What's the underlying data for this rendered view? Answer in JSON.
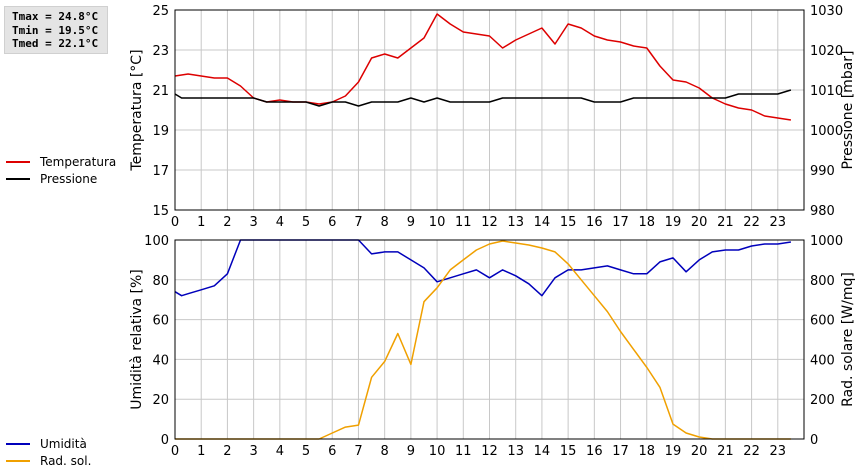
{
  "stats": {
    "tmax": "Tmax = 24.8°C",
    "tmin": "Tmin = 19.5°C",
    "tmed": "Tmed = 22.1°C"
  },
  "colors": {
    "temperature": "#dd0000",
    "pressure": "#000000",
    "humidity": "#0000bb",
    "radiation": "#f0a000",
    "grid": "#c8c8c8"
  },
  "legend_top": [
    {
      "label": "Temperatura",
      "color": "#dd0000"
    },
    {
      "label": "Pressione",
      "color": "#000000"
    }
  ],
  "legend_bottom": [
    {
      "label": "Umidità",
      "color": "#0000bb"
    },
    {
      "label": "Rad. sol.",
      "color": "#f0a000"
    }
  ],
  "chart_data": [
    {
      "type": "line",
      "grid": true,
      "legend_position": "left",
      "xlabel": "",
      "ylabel_left": "Temperatura [°C]",
      "ylabel_right": "Pressione [mbar]",
      "xlim": [
        0,
        24
      ],
      "ylim_left": [
        15,
        25
      ],
      "ylim_right": [
        980,
        1030
      ],
      "x_ticks": [
        "0",
        "1",
        "2",
        "3",
        "4",
        "5",
        "6",
        "7",
        "8",
        "9",
        "10",
        "11",
        "12",
        "13",
        "14",
        "15",
        "16",
        "17",
        "18",
        "19",
        "20",
        "21",
        "22",
        "23"
      ],
      "y_ticks_left": [
        "15",
        "17",
        "19",
        "21",
        "23",
        "25"
      ],
      "y_ticks_right": [
        "980",
        "990",
        "1000",
        "1010",
        "1020",
        "1030"
      ],
      "series": [
        {
          "name": "Temperatura",
          "axis": "left",
          "color": "#dd0000",
          "x": [
            0,
            0.5,
            1,
            1.5,
            2,
            2.5,
            3,
            3.5,
            4,
            4.5,
            5,
            5.5,
            6,
            6.5,
            7,
            7.5,
            8,
            8.5,
            9,
            9.5,
            10,
            10.5,
            11,
            11.5,
            12,
            12.5,
            13,
            13.5,
            14,
            14.5,
            15,
            15.5,
            16,
            16.5,
            17,
            17.5,
            18,
            18.5,
            19,
            19.5,
            20,
            20.5,
            21,
            21.5,
            22,
            22.5,
            23,
            23.5
          ],
          "values": [
            21.7,
            21.8,
            21.7,
            21.6,
            21.6,
            21.2,
            20.6,
            20.4,
            20.5,
            20.4,
            20.4,
            20.3,
            20.4,
            20.7,
            21.4,
            22.6,
            22.8,
            22.6,
            23.1,
            23.6,
            24.8,
            24.3,
            23.9,
            23.8,
            23.7,
            23.1,
            23.5,
            23.8,
            24.1,
            23.3,
            24.3,
            24.1,
            23.7,
            23.5,
            23.4,
            23.2,
            23.1,
            22.2,
            21.5,
            21.4,
            21.1,
            20.6,
            20.3,
            20.1,
            20.0,
            19.7,
            19.6,
            19.5
          ]
        },
        {
          "name": "Pressione",
          "axis": "right",
          "color": "#000000",
          "x": [
            0,
            0.25,
            0.5,
            1,
            1.5,
            2,
            2.5,
            3,
            3.5,
            4,
            4.5,
            5,
            5.5,
            6,
            6.5,
            7,
            7.5,
            8,
            8.5,
            9,
            9.5,
            10,
            10.5,
            11,
            11.5,
            12,
            12.5,
            13,
            13.5,
            14,
            14.5,
            15,
            15.5,
            16,
            16.5,
            17,
            17.5,
            18,
            18.5,
            19,
            19.5,
            20,
            20.5,
            21,
            21.5,
            22,
            22.5,
            23,
            23.5
          ],
          "values": [
            1009,
            1008,
            1008,
            1008,
            1008,
            1008,
            1008,
            1008,
            1007,
            1007,
            1007,
            1007,
            1006,
            1007,
            1007,
            1006,
            1007,
            1007,
            1007,
            1008,
            1007,
            1008,
            1007,
            1007,
            1007,
            1007,
            1008,
            1008,
            1008,
            1008,
            1008,
            1008,
            1008,
            1007,
            1007,
            1007,
            1008,
            1008,
            1008,
            1008,
            1008,
            1008,
            1008,
            1008,
            1009,
            1009,
            1009,
            1009,
            1010
          ]
        }
      ]
    },
    {
      "type": "line",
      "grid": true,
      "legend_position": "left",
      "xlabel": "",
      "ylabel_left": "Umidità relativa [%]",
      "ylabel_right": "Rad. solare [W/mq]",
      "xlim": [
        0,
        24
      ],
      "ylim_left": [
        0,
        100
      ],
      "ylim_right": [
        0,
        1000
      ],
      "x_ticks": [
        "0",
        "1",
        "2",
        "3",
        "4",
        "5",
        "6",
        "7",
        "8",
        "9",
        "10",
        "11",
        "12",
        "13",
        "14",
        "15",
        "16",
        "17",
        "18",
        "19",
        "20",
        "21",
        "22",
        "23"
      ],
      "y_ticks_left": [
        "0",
        "20",
        "40",
        "60",
        "80",
        "100"
      ],
      "y_ticks_right": [
        "0",
        "200",
        "400",
        "600",
        "800",
        "1000"
      ],
      "series": [
        {
          "name": "Umidità",
          "axis": "left",
          "color": "#0000bb",
          "x": [
            0,
            0.25,
            0.5,
            1,
            1.5,
            2,
            2.5,
            3,
            3.5,
            4,
            4.5,
            5,
            5.5,
            6,
            6.5,
            7,
            7.5,
            8,
            8.5,
            9,
            9.5,
            10,
            10.5,
            11,
            11.5,
            12,
            12.5,
            13,
            13.5,
            14,
            14.5,
            15,
            15.5,
            16,
            16.5,
            17,
            17.5,
            18,
            18.5,
            19,
            19.5,
            20,
            20.5,
            21,
            21.5,
            22,
            22.5,
            23,
            23.5
          ],
          "values": [
            74,
            72,
            73,
            75,
            77,
            83,
            100,
            100,
            100,
            100,
            100,
            100,
            100,
            100,
            100,
            100,
            93,
            94,
            94,
            90,
            86,
            79,
            81,
            83,
            85,
            81,
            85,
            82,
            78,
            72,
            81,
            85,
            85,
            86,
            87,
            85,
            83,
            83,
            89,
            91,
            84,
            90,
            94,
            95,
            95,
            97,
            98,
            98,
            99
          ]
        },
        {
          "name": "Rad. sol.",
          "axis": "right",
          "color": "#f0a000",
          "x": [
            0,
            0.5,
            1,
            1.5,
            2,
            2.5,
            3,
            3.5,
            4,
            4.5,
            5,
            5.5,
            6,
            6.5,
            7,
            7.5,
            8,
            8.5,
            9,
            9.5,
            10,
            10.5,
            11,
            11.5,
            12,
            12.5,
            13,
            13.5,
            14,
            14.5,
            15,
            15.5,
            16,
            16.5,
            17,
            17.5,
            18,
            18.5,
            19,
            19.5,
            20,
            20.5,
            21,
            21.5,
            22,
            22.5,
            23,
            23.5
          ],
          "values": [
            0,
            0,
            0,
            0,
            0,
            0,
            0,
            0,
            0,
            0,
            0,
            0,
            30,
            60,
            70,
            310,
            390,
            530,
            375,
            690,
            760,
            850,
            900,
            950,
            980,
            995,
            985,
            975,
            960,
            940,
            880,
            800,
            720,
            640,
            540,
            450,
            360,
            260,
            75,
            30,
            10,
            0,
            0,
            0,
            0,
            0,
            0,
            0
          ]
        }
      ]
    }
  ]
}
